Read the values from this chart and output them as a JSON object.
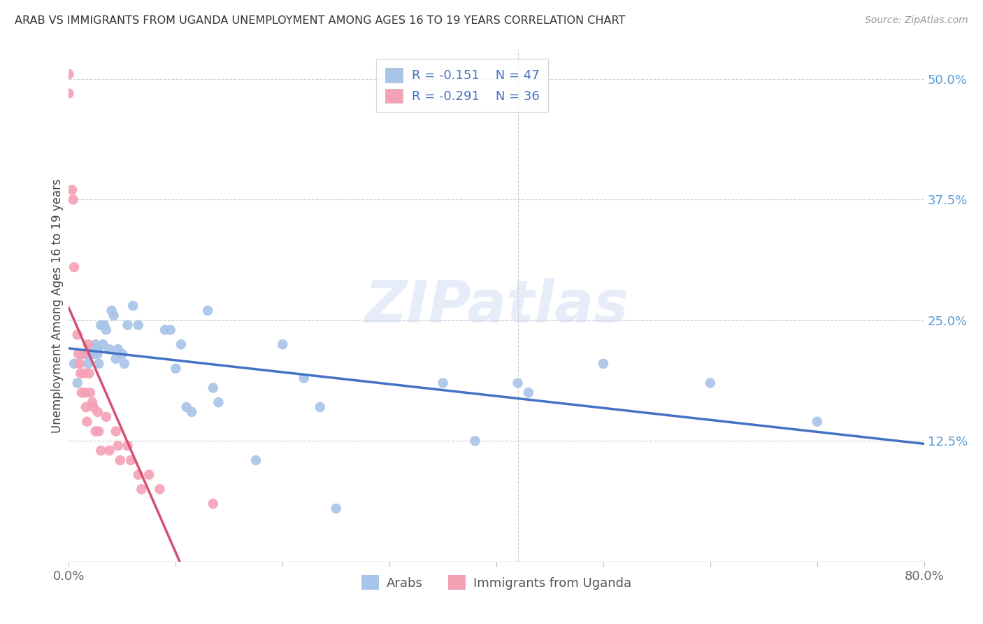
{
  "title": "ARAB VS IMMIGRANTS FROM UGANDA UNEMPLOYMENT AMONG AGES 16 TO 19 YEARS CORRELATION CHART",
  "source": "Source: ZipAtlas.com",
  "ylabel_label": "Unemployment Among Ages 16 to 19 years",
  "legend_label1": "Arabs",
  "legend_label2": "Immigrants from Uganda",
  "R1": -0.151,
  "N1": 47,
  "R2": -0.291,
  "N2": 36,
  "color_arab": "#a8c4e8",
  "color_uganda": "#f4a0b5",
  "trendline_arab": "#4472c4",
  "trendline_uganda": "#d45070",
  "watermark": "ZIPatlas",
  "xlim": [
    0.0,
    0.8
  ],
  "ylim": [
    0.0,
    0.53
  ],
  "yticks": [
    0.125,
    0.25,
    0.375,
    0.5
  ],
  "ytick_labels": [
    "12.5%",
    "25.0%",
    "37.5%",
    "50.0%"
  ],
  "xtick_labels_show": {
    "0.0": "0.0%",
    "0.8": "80.0%"
  },
  "arab_x": [
    0.005,
    0.008,
    0.015,
    0.018,
    0.018,
    0.02,
    0.022,
    0.024,
    0.025,
    0.027,
    0.027,
    0.028,
    0.03,
    0.032,
    0.033,
    0.035,
    0.038,
    0.04,
    0.042,
    0.044,
    0.046,
    0.05,
    0.052,
    0.055,
    0.06,
    0.065,
    0.09,
    0.095,
    0.1,
    0.105,
    0.11,
    0.115,
    0.13,
    0.135,
    0.14,
    0.175,
    0.2,
    0.22,
    0.235,
    0.25,
    0.35,
    0.38,
    0.42,
    0.43,
    0.5,
    0.6,
    0.7
  ],
  "arab_y": [
    0.205,
    0.185,
    0.215,
    0.215,
    0.205,
    0.215,
    0.22,
    0.215,
    0.225,
    0.22,
    0.215,
    0.205,
    0.245,
    0.225,
    0.245,
    0.24,
    0.22,
    0.26,
    0.255,
    0.21,
    0.22,
    0.215,
    0.205,
    0.245,
    0.265,
    0.245,
    0.24,
    0.24,
    0.2,
    0.225,
    0.16,
    0.155,
    0.26,
    0.18,
    0.165,
    0.105,
    0.225,
    0.19,
    0.16,
    0.055,
    0.185,
    0.125,
    0.185,
    0.175,
    0.205,
    0.185,
    0.145
  ],
  "uganda_x": [
    0.0,
    0.0,
    0.003,
    0.004,
    0.005,
    0.008,
    0.009,
    0.01,
    0.011,
    0.012,
    0.013,
    0.014,
    0.015,
    0.016,
    0.017,
    0.018,
    0.019,
    0.02,
    0.022,
    0.023,
    0.025,
    0.027,
    0.028,
    0.03,
    0.035,
    0.038,
    0.044,
    0.046,
    0.048,
    0.055,
    0.058,
    0.065,
    0.068,
    0.075,
    0.085,
    0.135
  ],
  "uganda_y": [
    0.505,
    0.485,
    0.385,
    0.375,
    0.305,
    0.235,
    0.215,
    0.205,
    0.195,
    0.175,
    0.215,
    0.195,
    0.175,
    0.16,
    0.145,
    0.225,
    0.195,
    0.175,
    0.165,
    0.16,
    0.135,
    0.155,
    0.135,
    0.115,
    0.15,
    0.115,
    0.135,
    0.12,
    0.105,
    0.12,
    0.105,
    0.09,
    0.075,
    0.09,
    0.075,
    0.06
  ]
}
